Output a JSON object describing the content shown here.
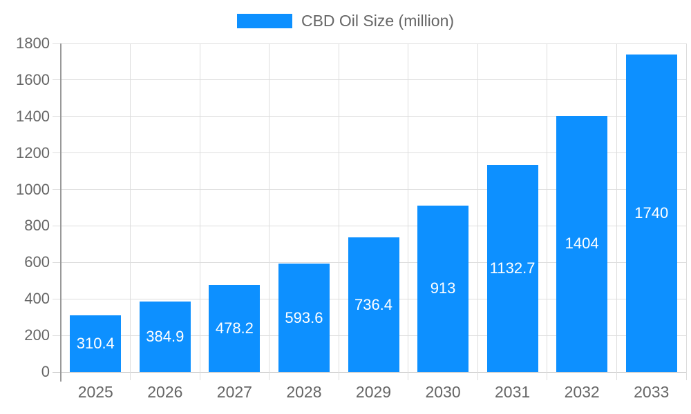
{
  "chart_data": {
    "type": "bar",
    "title": "",
    "legend": "CBD Oil Size (million)",
    "legend_position": "top",
    "categories": [
      "2025",
      "2026",
      "2027",
      "2028",
      "2029",
      "2030",
      "2031",
      "2032",
      "2033"
    ],
    "values": [
      310.4,
      384.9,
      478.2,
      593.6,
      736.4,
      913,
      1132.7,
      1404,
      1740
    ],
    "value_labels": [
      "310.4",
      "384.9",
      "478.2",
      "593.6",
      "736.4",
      "913",
      "1132.7",
      "1404",
      "1740"
    ],
    "xlabel": "",
    "ylabel": "",
    "ylim": [
      0,
      1800
    ],
    "yticks": [
      0,
      200,
      400,
      600,
      800,
      1000,
      1200,
      1400,
      1600,
      1800
    ],
    "grid": true,
    "colors": {
      "bar": "#0D90FF",
      "grid": "#DDDDDD",
      "zero_line": "#C0C0C0",
      "axis": "#999999",
      "tick_text": "#666666",
      "value_text": "#FFFFFF",
      "legend_text": "#666666"
    }
  }
}
